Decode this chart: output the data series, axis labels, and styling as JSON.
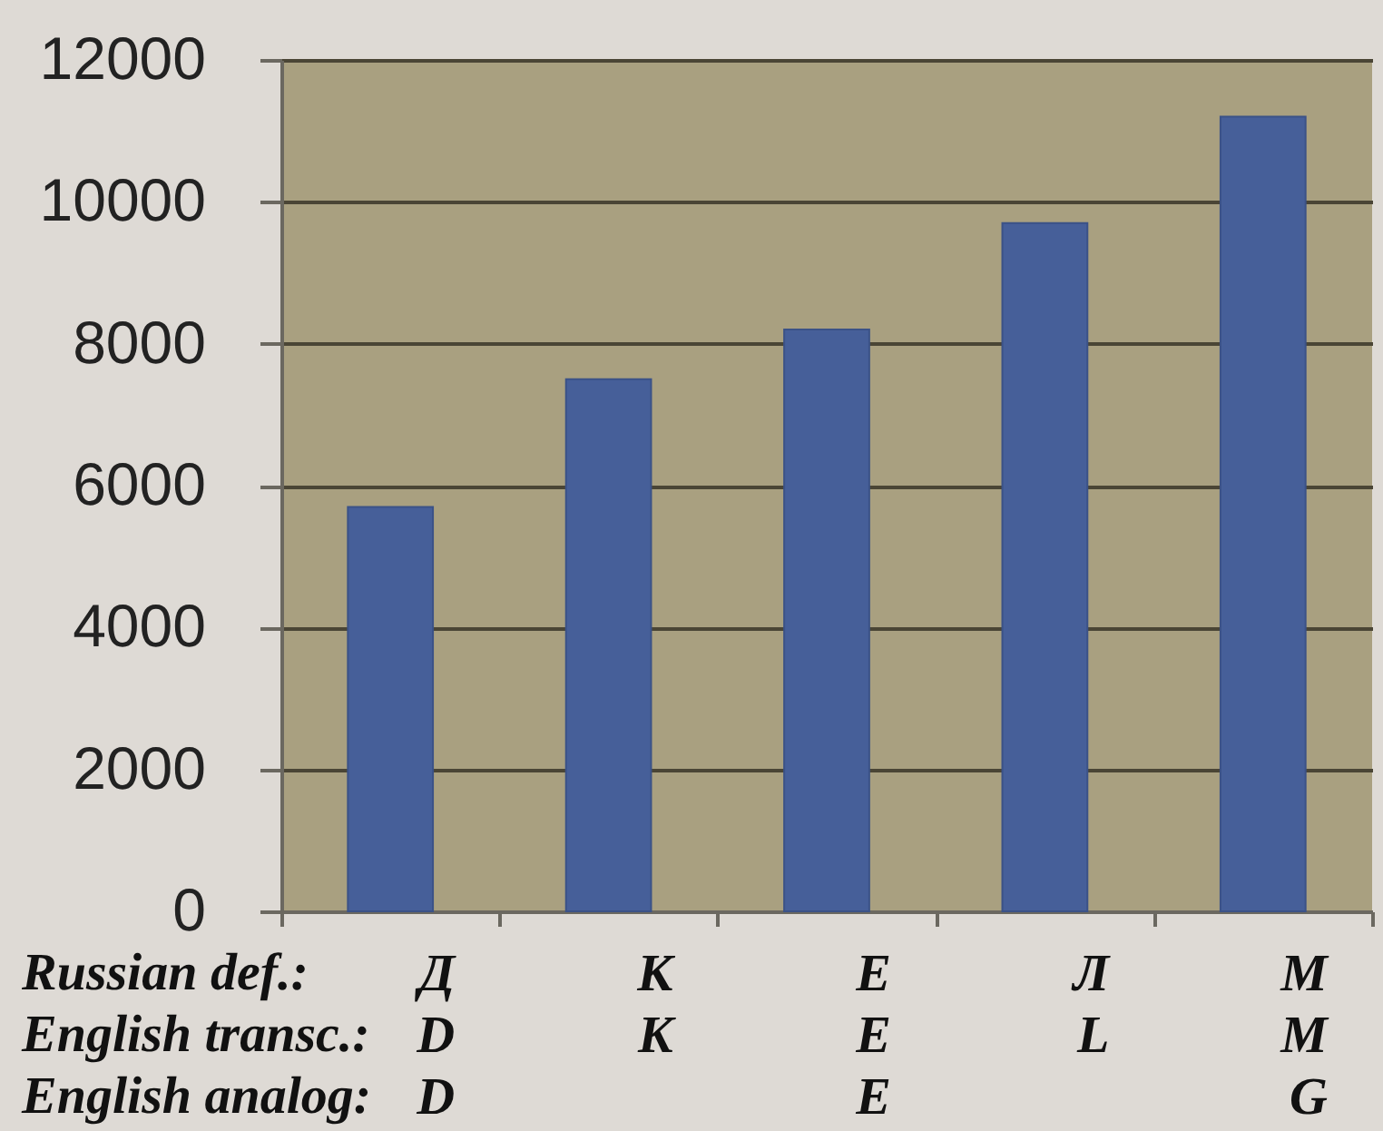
{
  "chart_data": {
    "type": "bar",
    "categories": [
      "Д\nD\nD",
      "К\nK",
      "Е\nE\nE",
      "Л\nL",
      "М\nM\nG"
    ],
    "values": [
      5700,
      7500,
      8200,
      9700,
      11200
    ],
    "color": "#465f99",
    "ylim": [
      0,
      12000
    ],
    "yticks": [
      0,
      2000,
      4000,
      6000,
      8000,
      10000,
      12000
    ],
    "grid": "y",
    "annotations": [
      "Russian def.:",
      "English transc.:",
      "English analog:"
    ]
  }
}
